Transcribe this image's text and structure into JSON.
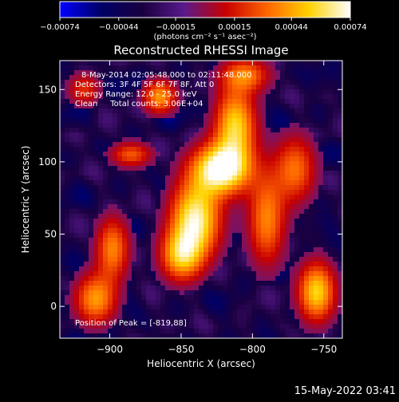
{
  "chart_data": {
    "type": "heatmap",
    "title": "Reconstructed RHESSI Image",
    "xlabel": "Heliocentric X (arcsec)",
    "ylabel": "Heliocentric Y (arcsec)",
    "xlim": [
      -935,
      -737
    ],
    "ylim": [
      -22,
      170
    ],
    "x_ticks": [
      -900,
      -850,
      -800,
      -750
    ],
    "x_tick_labels": [
      "−900",
      "−850",
      "−800",
      "−750"
    ],
    "y_ticks": [
      0,
      50,
      100,
      150
    ],
    "y_tick_labels": [
      "0",
      "50",
      "100",
      "150"
    ],
    "colorbar": {
      "range": [
        -0.00074,
        0.00074
      ],
      "ticks": [
        -0.00074,
        -0.00044,
        -0.00015,
        0.00015,
        0.00044,
        0.00074
      ],
      "tick_labels": [
        "−0.00074",
        "−0.00044",
        "−0.00015",
        "0.00015",
        "0.00044",
        "0.00074"
      ],
      "unit_label": "(photons cm⁻² s⁻¹ asec⁻²)",
      "colormap": [
        "#0000ff",
        "#000066",
        "#1a0040",
        "#5a1a8c",
        "#c80000",
        "#ff6600",
        "#ffd200",
        "#ffffff"
      ]
    },
    "annotations": {
      "time_range": "8-May-2014 02:05:48.000 to 02:11:48.000",
      "detectors": "Detectors: 3F 4F 5F 6F 7F 8F, Att 0",
      "energy": "Energy Range: 12.0 - 25.0 keV",
      "clean": "Clean     Total counts: 3.06E+04",
      "peak": "Position of Peak = [-819,88]"
    },
    "sources": [
      {
        "x": -822,
        "y": 95,
        "amp": 1.0,
        "sx": 14,
        "sy": 12
      },
      {
        "x": -840,
        "y": 60,
        "amp": 0.9,
        "sx": 12,
        "sy": 18
      },
      {
        "x": -812,
        "y": 125,
        "amp": 0.75,
        "sx": 10,
        "sy": 18
      },
      {
        "x": -850,
        "y": 35,
        "amp": 0.65,
        "sx": 10,
        "sy": 12
      },
      {
        "x": -865,
        "y": 145,
        "amp": 0.6,
        "sx": 8,
        "sy": 8
      },
      {
        "x": -790,
        "y": 60,
        "amp": 0.55,
        "sx": 9,
        "sy": 22
      },
      {
        "x": -770,
        "y": 95,
        "amp": 0.5,
        "sx": 10,
        "sy": 16
      },
      {
        "x": -755,
        "y": 10,
        "amp": 0.75,
        "sx": 9,
        "sy": 14
      },
      {
        "x": -898,
        "y": 40,
        "amp": 0.55,
        "sx": 8,
        "sy": 15
      },
      {
        "x": -910,
        "y": 5,
        "amp": 0.6,
        "sx": 10,
        "sy": 12
      },
      {
        "x": -885,
        "y": 105,
        "amp": 0.45,
        "sx": 10,
        "sy": 6
      },
      {
        "x": -805,
        "y": 160,
        "amp": 0.5,
        "sx": 12,
        "sy": 8
      },
      {
        "x": -918,
        "y": 150,
        "amp": 0.35,
        "sx": 8,
        "sy": 8
      }
    ]
  },
  "footer": {
    "timestamp": "15-May-2022 03:41"
  }
}
